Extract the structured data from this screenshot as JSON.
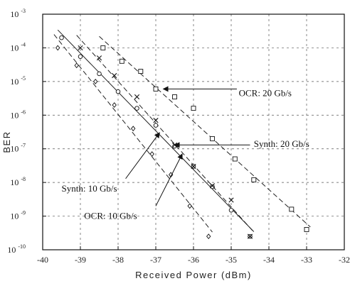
{
  "chart_data": {
    "type": "scatter",
    "xlabel": "Received Power (dBm)",
    "ylabel": "BER",
    "xlim": [
      -40,
      -32
    ],
    "ylim_log10": [
      -10,
      -3
    ],
    "y_scale": "log",
    "grid": true,
    "x_ticks": [
      "-40",
      "-39",
      "-38",
      "-37",
      "-36",
      "-35",
      "-34",
      "-33",
      "-32"
    ],
    "y_ticks": [
      {
        "base": "10",
        "exp": "-3"
      },
      {
        "base": "10",
        "exp": "-4"
      },
      {
        "base": "10",
        "exp": "-5"
      },
      {
        "base": "10",
        "exp": "-6"
      },
      {
        "base": "10",
        "exp": "-7"
      },
      {
        "base": "10",
        "exp": "-8"
      },
      {
        "base": "10",
        "exp": "-9"
      },
      {
        "base": "10",
        "exp": "-10"
      }
    ],
    "series": [
      {
        "marker": "diamond",
        "line": "dash",
        "points": [
          [
            -39.6,
            0.0001
          ],
          [
            -39.1,
            3e-05
          ],
          [
            -38.6,
            1e-05
          ],
          [
            -38.1,
            2e-06
          ],
          [
            -37.6,
            4e-07
          ],
          [
            -37.1,
            7e-08
          ],
          [
            -36.6,
            1.7e-08
          ],
          [
            -36.1,
            2e-09
          ],
          [
            -35.6,
            2.5e-10
          ]
        ]
      },
      {
        "marker": "circle",
        "line": "solid",
        "points": [
          [
            -39.5,
            0.0002
          ],
          [
            -39.0,
            5.5e-05
          ],
          [
            -38.5,
            1.7e-05
          ],
          [
            -38.0,
            5e-06
          ],
          [
            -37.5,
            1.6e-06
          ],
          [
            -37.0,
            5e-07
          ],
          [
            -36.5,
            1.2e-07
          ],
          [
            -36.0,
            3e-08
          ],
          [
            -35.5,
            7.5e-09
          ],
          [
            -35.0,
            1.5e-09
          ],
          [
            -34.5,
            2.5e-10
          ]
        ]
      },
      {
        "marker": "cross",
        "line": "dash",
        "points": [
          [
            -39.0,
            0.0001
          ],
          [
            -38.5,
            5e-05
          ],
          [
            -38.1,
            1.5e-05
          ],
          [
            -37.5,
            3.5e-06
          ],
          [
            -37.0,
            7e-07
          ],
          [
            -36.5,
            1.3e-07
          ],
          [
            -36.0,
            3e-08
          ],
          [
            -35.5,
            8e-09
          ],
          [
            -35.0,
            3e-09
          ],
          [
            -34.5,
            2.5e-10
          ]
        ]
      },
      {
        "marker": "square",
        "line": "dash",
        "points": [
          [
            -38.4,
            0.0001
          ],
          [
            -37.9,
            4e-05
          ],
          [
            -37.4,
            2e-05
          ],
          [
            -37.0,
            6e-06
          ],
          [
            -36.5,
            3.5e-06
          ],
          [
            -36.0,
            1.6e-06
          ],
          [
            -35.5,
            2e-07
          ],
          [
            -34.9,
            5e-08
          ],
          [
            -34.4,
            1.2e-08
          ],
          [
            -33.4,
            1.6e-09
          ],
          [
            -33.0,
            4e-10
          ]
        ]
      }
    ],
    "annotations": [
      {
        "text": "OCR: 20 Gb/s"
      },
      {
        "text": "Synth: 20 Gb/s"
      },
      {
        "text": "Synth: 10 Gb/s"
      },
      {
        "text": "OCR: 10 Gb/s"
      }
    ]
  }
}
